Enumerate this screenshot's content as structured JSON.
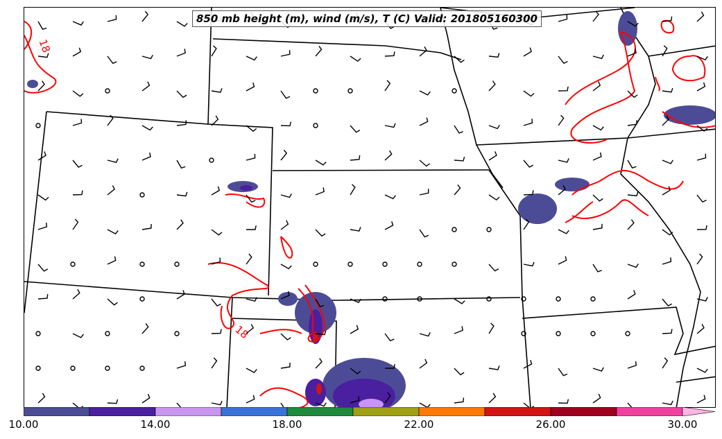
{
  "title": "850 mb height (m), wind (m/s), T (C) Valid: 201805160300",
  "contour_labels": [
    "18",
    "18"
  ],
  "colorbar": {
    "colors": [
      "#4c4c96",
      "#4a1fa0",
      "#c896f0",
      "#3a72d8",
      "#1f8a3c",
      "#a0a014",
      "#ff7800",
      "#d21414",
      "#a0001e",
      "#f040a0",
      "#ffb4e6"
    ],
    "tick_labels": [
      "10.00",
      "14.00",
      "18.00",
      "22.00",
      "26.00",
      "30.00"
    ]
  }
}
